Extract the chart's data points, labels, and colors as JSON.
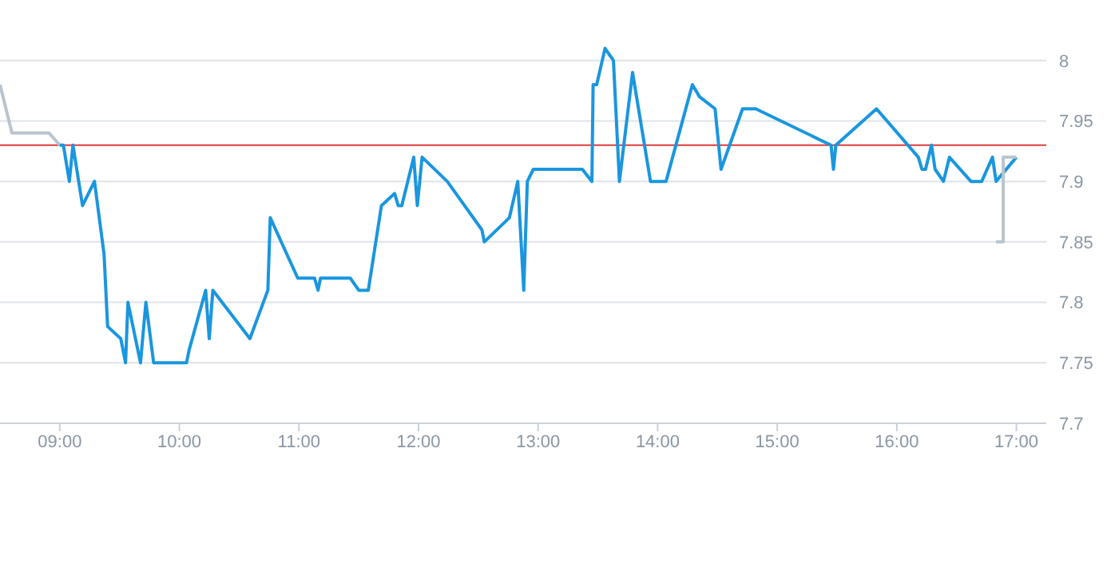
{
  "chart_data": {
    "type": "line",
    "xlim": [
      8.5,
      17.25
    ],
    "ylim": [
      7.7,
      8.05
    ],
    "xticks": [
      {
        "value": 9,
        "label": "09:00"
      },
      {
        "value": 10,
        "label": "10:00"
      },
      {
        "value": 11,
        "label": "11:00"
      },
      {
        "value": 12,
        "label": "12:00"
      },
      {
        "value": 13,
        "label": "13:00"
      },
      {
        "value": 14,
        "label": "14:00"
      },
      {
        "value": 15,
        "label": "15:00"
      },
      {
        "value": 16,
        "label": "16:00"
      },
      {
        "value": 17,
        "label": "17:00"
      }
    ],
    "yticks": [
      7.7,
      7.75,
      7.8,
      7.85,
      7.9,
      7.95,
      8
    ],
    "grid": "y",
    "marker": "none",
    "line_style": "solid",
    "ref_lines": [
      {
        "axis": "y",
        "value": 7.93,
        "color": "#e03a3a"
      }
    ],
    "series": [
      {
        "color": "#b8c4ce",
        "x": [
          8.5,
          8.6,
          8.91,
          9.0
        ],
        "values": [
          7.98,
          7.94,
          7.94,
          7.93
        ]
      },
      {
        "color": "#1a96de",
        "x": [
          9.0,
          9.03,
          9.08,
          9.11,
          9.19,
          9.29,
          9.37,
          9.4,
          9.51,
          9.55,
          9.57,
          9.675,
          9.72,
          9.785,
          10.06,
          10.08,
          10.22,
          10.25,
          10.28,
          10.59,
          10.74,
          10.76,
          10.99,
          11.13,
          11.16,
          11.18,
          11.43,
          11.5,
          11.58,
          11.69,
          11.8,
          11.83,
          11.86,
          11.96,
          11.99,
          12.03,
          12.24,
          12.53,
          12.55,
          12.76,
          12.83,
          12.88,
          12.91,
          12.96,
          13.37,
          13.45,
          13.46,
          13.49,
          13.56,
          13.63,
          13.68,
          13.79,
          13.94,
          14.07,
          14.29,
          14.35,
          14.48,
          14.53,
          14.71,
          14.82,
          15.45,
          15.47,
          15.49,
          15.83,
          16.18,
          16.21,
          16.24,
          16.29,
          16.32,
          16.39,
          16.44,
          16.62,
          16.71,
          16.8,
          16.83,
          17.0
        ],
        "values": [
          7.93,
          7.93,
          7.9,
          7.93,
          7.88,
          7.9,
          7.84,
          7.78,
          7.77,
          7.75,
          7.8,
          7.75,
          7.8,
          7.75,
          7.75,
          7.76,
          7.81,
          7.77,
          7.81,
          7.77,
          7.81,
          7.87,
          7.82,
          7.82,
          7.81,
          7.82,
          7.82,
          7.81,
          7.81,
          7.88,
          7.89,
          7.88,
          7.88,
          7.92,
          7.88,
          7.92,
          7.9,
          7.86,
          7.85,
          7.87,
          7.9,
          7.81,
          7.9,
          7.91,
          7.91,
          7.9,
          7.98,
          7.98,
          8.01,
          8.0,
          7.9,
          7.99,
          7.9,
          7.9,
          7.98,
          7.97,
          7.96,
          7.91,
          7.96,
          7.96,
          7.93,
          7.91,
          7.93,
          7.96,
          7.92,
          7.91,
          7.91,
          7.93,
          7.91,
          7.9,
          7.92,
          7.9,
          7.9,
          7.92,
          7.9,
          7.92
        ]
      },
      {
        "color": "#b8c4ce",
        "x": [
          16.83,
          16.89,
          16.89,
          17.0
        ],
        "values": [
          7.85,
          7.85,
          7.92,
          7.92
        ]
      }
    ]
  }
}
